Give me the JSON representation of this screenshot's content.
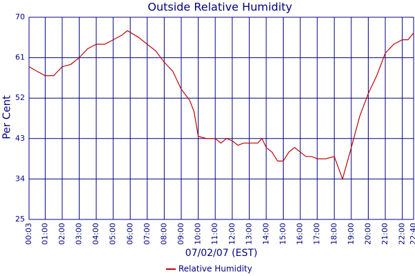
{
  "chart_data": {
    "type": "line",
    "title": "Outside Relative Humidity",
    "x_label": "07/02/07 (EST)",
    "y_label": "Per Cent",
    "x": [
      "00:03",
      "00:30",
      "01:00",
      "01:30",
      "02:00",
      "02:30",
      "03:00",
      "03:30",
      "04:00",
      "04:30",
      "05:00",
      "05:30",
      "05:50",
      "06:30",
      "07:00",
      "07:30",
      "08:00",
      "08:30",
      "09:00",
      "09:30",
      "09:45",
      "10:00",
      "10:30",
      "11:00",
      "11:20",
      "11:40",
      "12:00",
      "12:20",
      "12:40",
      "13:00",
      "13:30",
      "13:45",
      "14:00",
      "14:20",
      "14:40",
      "15:00",
      "15:20",
      "15:40",
      "16:00",
      "16:20",
      "16:40",
      "17:00",
      "17:30",
      "18:00",
      "18:29",
      "19:00",
      "19:30",
      "20:00",
      "20:30",
      "21:00",
      "21:30",
      "22:00",
      "22:20",
      "22:40"
    ],
    "series": [
      {
        "name": "Relative Humidity",
        "color": "#c00000",
        "values": [
          59,
          58,
          57,
          57,
          59,
          59.5,
          61,
          63,
          64,
          64,
          65,
          66,
          67,
          65.5,
          64,
          62.5,
          60,
          58,
          54,
          51.5,
          49,
          43.5,
          43,
          43,
          42,
          43,
          42.5,
          41.5,
          42,
          42,
          42,
          43,
          41,
          40,
          38,
          38,
          40,
          41,
          40,
          39,
          39,
          38.5,
          38.5,
          39,
          34,
          41,
          48,
          53,
          57,
          62,
          64,
          65,
          65,
          66.5
        ]
      }
    ],
    "xlim": [
      "00:03",
      "22:40"
    ],
    "xticks": [
      "00:03",
      "01:00",
      "02:00",
      "03:00",
      "04:00",
      "05:00",
      "06:00",
      "07:00",
      "08:00",
      "09:00",
      "10:00",
      "11:00",
      "12:00",
      "13:00",
      "14:00",
      "15:00",
      "16:00",
      "17:00",
      "18:00",
      "19:00",
      "20:00",
      "21:00",
      "22:00",
      "22:40"
    ],
    "ylim": [
      25,
      70
    ],
    "yticks": [
      25,
      34,
      43,
      52,
      61,
      70
    ],
    "grid": true,
    "grid_color": "#000080"
  }
}
